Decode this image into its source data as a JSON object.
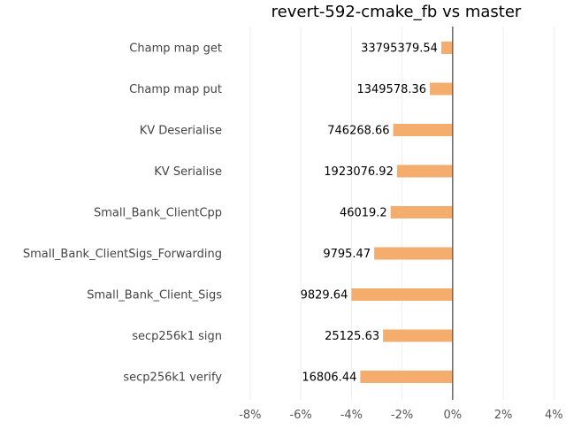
{
  "chart_data": {
    "type": "bar",
    "orientation": "horizontal",
    "title": "revert-592-cmake_fb vs master",
    "xlabel": "",
    "ylabel": "",
    "categories": [
      "Champ map get",
      "Champ map put",
      "KV Deserialise",
      "KV Serialise",
      "Small_Bank_ClientCpp",
      "Small_Bank_ClientSigs_Forwarding",
      "Small_Bank_Client_Sigs",
      "secp256k1 sign",
      "secp256k1 verify"
    ],
    "series": [
      {
        "values": [
          -0.45,
          -0.9,
          -2.35,
          -2.2,
          -2.45,
          -3.1,
          -4.0,
          -2.75,
          -3.65
        ],
        "data_labels": [
          "33795379.54",
          "1349578.36",
          "746268.66",
          "1923076.92",
          "46019.2",
          "9795.47",
          "9829.64",
          "25125.63",
          "16806.44"
        ],
        "color": "#f5ad6e"
      }
    ],
    "xlim": [
      -8.8,
      4.2
    ],
    "xticks": [
      -8,
      -6,
      -4,
      -2,
      0,
      2,
      4
    ],
    "xtick_labels": [
      "-8%",
      "-6%",
      "-4%",
      "-2%",
      "0%",
      "2%",
      "4%"
    ],
    "grid": "vertical",
    "zero_line_color": "#666666",
    "legend": "none"
  }
}
